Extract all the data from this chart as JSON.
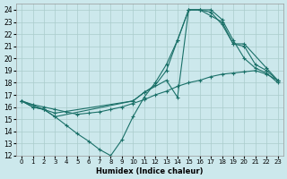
{
  "bg_color": "#cce8ec",
  "grid_color": "#aacccc",
  "line_color": "#1a7068",
  "xlabel": "Humidex (Indice chaleur)",
  "xlim": [
    -0.5,
    23.5
  ],
  "ylim": [
    12,
    24.5
  ],
  "xticks": [
    0,
    1,
    2,
    3,
    4,
    5,
    6,
    7,
    8,
    9,
    10,
    11,
    12,
    13,
    14,
    15,
    16,
    17,
    18,
    19,
    20,
    21,
    22,
    23
  ],
  "yticks": [
    12,
    13,
    14,
    15,
    16,
    17,
    18,
    19,
    20,
    21,
    22,
    23,
    24
  ],
  "line1_x": [
    0,
    1,
    2,
    3,
    4,
    5,
    6,
    7,
    8,
    9,
    10,
    11,
    12,
    13,
    14,
    15,
    16,
    17,
    18,
    19,
    20,
    21,
    22,
    23
  ],
  "line1_y": [
    16.5,
    16.0,
    15.8,
    15.2,
    14.5,
    13.8,
    13.2,
    12.5,
    12.0,
    13.3,
    15.2,
    16.8,
    18.0,
    19.5,
    21.5,
    24.0,
    24.0,
    24.0,
    23.2,
    21.5,
    20.0,
    19.2,
    18.8,
    18.0
  ],
  "line2_x": [
    0,
    1,
    2,
    3,
    10,
    11,
    12,
    13,
    14,
    15,
    16,
    17,
    18,
    19,
    20,
    21,
    22,
    23
  ],
  "line2_y": [
    16.5,
    16.0,
    15.8,
    15.2,
    16.5,
    17.2,
    17.8,
    19.0,
    21.5,
    24.0,
    24.0,
    23.5,
    23.0,
    21.2,
    21.0,
    19.5,
    19.0,
    18.2
  ],
  "line3_x": [
    0,
    2,
    3,
    10,
    11,
    13,
    14,
    15,
    16,
    17,
    18,
    19,
    20,
    22,
    23
  ],
  "line3_y": [
    16.5,
    15.8,
    15.5,
    16.5,
    17.2,
    18.2,
    16.8,
    24.0,
    24.0,
    23.8,
    22.8,
    21.2,
    21.2,
    19.2,
    18.2
  ],
  "line4_x": [
    0,
    1,
    2,
    3,
    4,
    5,
    6,
    7,
    8,
    9,
    10,
    11,
    12,
    13,
    14,
    15,
    16,
    17,
    18,
    19,
    20,
    21,
    22,
    23
  ],
  "line4_y": [
    16.5,
    16.2,
    16.0,
    15.8,
    15.6,
    15.4,
    15.5,
    15.6,
    15.8,
    16.0,
    16.3,
    16.6,
    17.0,
    17.3,
    17.7,
    18.0,
    18.2,
    18.5,
    18.7,
    18.8,
    18.9,
    19.0,
    18.7,
    18.2
  ]
}
